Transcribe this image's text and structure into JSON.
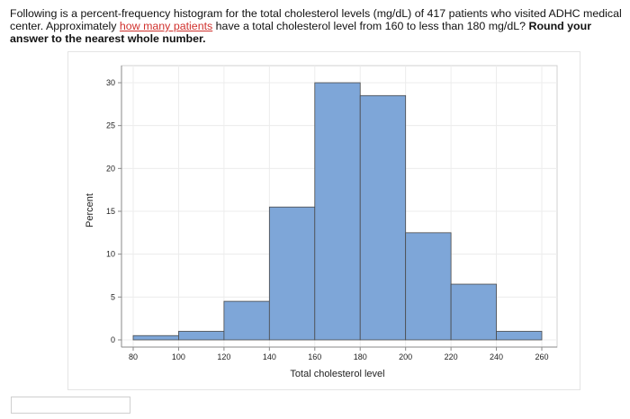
{
  "question": {
    "part1": "Following is a percent-frequency histogram for the ",
    "part2": "total cholesterol levels",
    "part3": " (mg/dL) of 417 patients who visited ADHC medical center. Approximately ",
    "link": "how many patients",
    "part4": " have a total cholesterol level from 160 to less than 180 mg/dL? ",
    "bold": "Round your answer to the nearest whole number."
  },
  "answer": {
    "value": "",
    "placeholder": ""
  },
  "colors": {
    "bar_fill": "#7ea6d8",
    "bar_stroke": "#4a4a4a",
    "link": "#d0312d",
    "grid": "#ececec"
  },
  "chart_data": {
    "type": "bar",
    "bin_edges": [
      80,
      100,
      120,
      140,
      160,
      180,
      200,
      220,
      240,
      260
    ],
    "values": [
      0.5,
      1.0,
      4.5,
      15.5,
      30.0,
      28.5,
      12.5,
      6.5,
      1.0
    ],
    "xticks": [
      "80",
      "100",
      "120",
      "140",
      "160",
      "180",
      "200",
      "220",
      "240",
      "260"
    ],
    "yticks": [
      "0",
      "5",
      "10",
      "15",
      "20",
      "25",
      "30"
    ],
    "xlabel": "Total cholesterol level",
    "ylabel": "Percent",
    "title": "",
    "xlim": [
      80,
      260
    ],
    "ylim": [
      0,
      30
    ],
    "grid": true
  }
}
